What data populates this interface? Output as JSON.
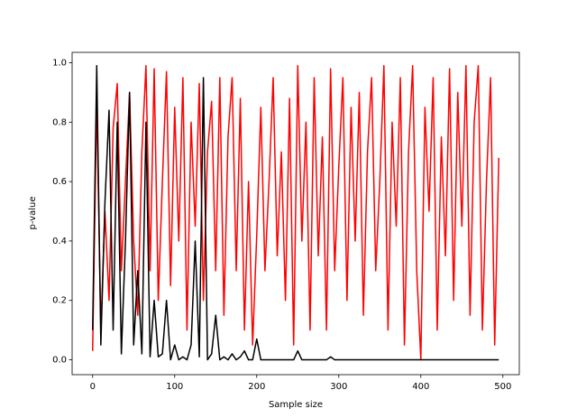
{
  "chart_data": {
    "type": "line",
    "xlabel": "Sample size",
    "ylabel": "p-value",
    "x": [
      0,
      5,
      10,
      15,
      20,
      25,
      30,
      35,
      40,
      45,
      50,
      55,
      60,
      65,
      70,
      75,
      80,
      85,
      90,
      95,
      100,
      105,
      110,
      115,
      120,
      125,
      130,
      135,
      140,
      145,
      150,
      155,
      160,
      165,
      170,
      175,
      180,
      185,
      190,
      195,
      200,
      205,
      210,
      215,
      220,
      225,
      230,
      235,
      240,
      245,
      250,
      255,
      260,
      265,
      270,
      275,
      280,
      285,
      290,
      295,
      300,
      305,
      310,
      315,
      320,
      325,
      330,
      335,
      340,
      345,
      350,
      355,
      360,
      365,
      370,
      375,
      380,
      385,
      390,
      395,
      400,
      405,
      410,
      415,
      420,
      425,
      430,
      435,
      440,
      445,
      450,
      455,
      460,
      465,
      470,
      475,
      480,
      485,
      490,
      495
    ],
    "series": [
      {
        "name": "red",
        "color": "#ff0000",
        "values": [
          0.03,
          0.88,
          0.1,
          0.5,
          0.2,
          0.78,
          0.93,
          0.3,
          0.6,
          0.9,
          0.4,
          0.15,
          0.7,
          0.99,
          0.3,
          0.98,
          0.2,
          0.6,
          0.97,
          0.25,
          0.85,
          0.4,
          0.95,
          0.1,
          0.8,
          0.45,
          0.93,
          0.2,
          0.7,
          0.87,
          0.3,
          0.95,
          0.15,
          0.75,
          0.95,
          0.3,
          0.88,
          0.1,
          0.6,
          0.05,
          0.42,
          0.85,
          0.3,
          0.6,
          0.95,
          0.35,
          0.7,
          0.2,
          0.88,
          0.05,
          0.99,
          0.4,
          0.8,
          0.1,
          0.95,
          0.35,
          0.75,
          0.1,
          0.98,
          0.3,
          0.65,
          0.95,
          0.2,
          0.85,
          0.4,
          0.9,
          0.15,
          0.7,
          0.95,
          0.3,
          0.6,
          0.99,
          0.1,
          0.8,
          0.45,
          0.95,
          0.05,
          0.7,
          0.99,
          0.3,
          0.0,
          0.85,
          0.5,
          0.95,
          0.1,
          0.75,
          0.35,
          0.98,
          0.2,
          0.9,
          0.45,
          0.99,
          0.15,
          0.8,
          0.99,
          0.1,
          0.6,
          0.95,
          0.05,
          0.68
        ]
      },
      {
        "name": "black",
        "color": "#000000",
        "values": [
          0.1,
          0.99,
          0.05,
          0.53,
          0.84,
          0.1,
          0.8,
          0.02,
          0.4,
          0.9,
          0.05,
          0.3,
          0.02,
          0.8,
          0.01,
          0.2,
          0.01,
          0.02,
          0.2,
          0.0,
          0.05,
          0.0,
          0.01,
          0.0,
          0.05,
          0.4,
          0.01,
          0.95,
          0.0,
          0.02,
          0.15,
          0.0,
          0.01,
          0.0,
          0.02,
          0.0,
          0.01,
          0.03,
          0.0,
          0.0,
          0.07,
          0.0,
          0.0,
          0.0,
          0.0,
          0.0,
          0.0,
          0.0,
          0.0,
          0.0,
          0.03,
          0.0,
          0.0,
          0.0,
          0.0,
          0.0,
          0.0,
          0.0,
          0.01,
          0.0,
          0.0,
          0.0,
          0.0,
          0.0,
          0.0,
          0.0,
          0.0,
          0.0,
          0.0,
          0.0,
          0.0,
          0.0,
          0.0,
          0.0,
          0.0,
          0.0,
          0.0,
          0.0,
          0.0,
          0.0,
          0.0,
          0.0,
          0.0,
          0.0,
          0.0,
          0.0,
          0.0,
          0.0,
          0.0,
          0.0,
          0.0,
          0.0,
          0.0,
          0.0,
          0.0,
          0.0,
          0.0,
          0.0,
          0.0,
          0.0
        ]
      }
    ],
    "xlim": [
      -25,
      520
    ],
    "ylim": [
      -0.05,
      1.035
    ],
    "xticks": [
      0,
      100,
      200,
      300,
      400,
      500
    ],
    "yticks": [
      {
        "value": 0,
        "label": "0.0"
      },
      0.2,
      0.4,
      0.6,
      0.8,
      {
        "value": 1,
        "label": "1.0"
      }
    ]
  }
}
